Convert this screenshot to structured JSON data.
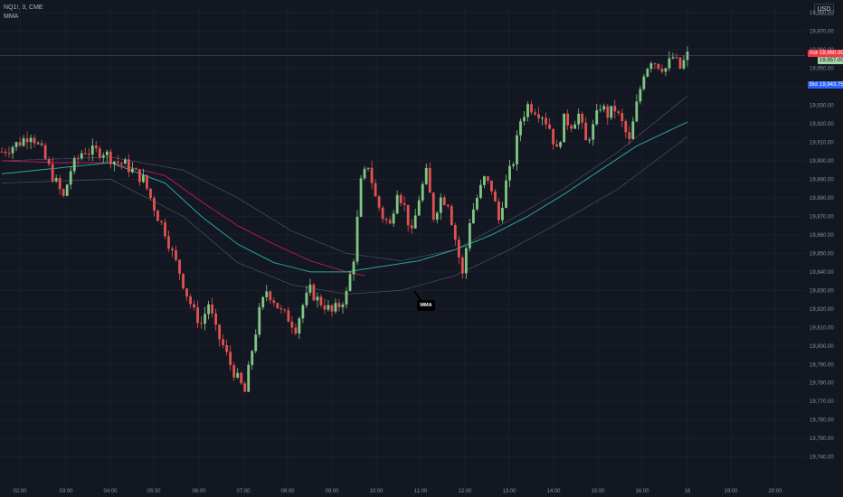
{
  "header": {
    "symbol_line": "NQ1!, 3, CME",
    "indicator_name": "MMA"
  },
  "currency_button": "USD",
  "price_tags": {
    "ask_label": "Ask",
    "ask_value": "19,960.00",
    "last_value": "19,957.00",
    "bid_label": "Bid",
    "bid_value": "19,943.75"
  },
  "callout_label": "MMA",
  "colors": {
    "background": "#131722",
    "up": "#81c784",
    "down": "#e05252",
    "ma_green": "#26a69a",
    "ma_red": "#c2185b",
    "band": "#5d606b",
    "ask": "#f23645",
    "bid": "#2962ff"
  },
  "chart_data": {
    "type": "candlestick",
    "y_ticks": [
      "19,980.00",
      "19,970.00",
      "19,960.00",
      "19,950.00",
      "19,940.00",
      "19,930.00",
      "19,920.00",
      "19,910.00",
      "19,900.00",
      "19,890.00",
      "19,880.00",
      "19,870.00",
      "19,860.00",
      "19,850.00",
      "19,840.00",
      "19,830.00",
      "19,820.00",
      "19,810.00",
      "19,800.00",
      "19,790.00",
      "19,780.00",
      "19,770.00",
      "19,760.00",
      "19,750.00",
      "19,740.00"
    ],
    "x_ticks": [
      "02:00",
      "03:00",
      "04:00",
      "05:00",
      "06:00",
      "07:00",
      "08:00",
      "09:00",
      "10:00",
      "11:00",
      "12:00",
      "13:00",
      "14:00",
      "15:00",
      "16:00",
      "16",
      "19:00",
      "20:00"
    ],
    "ylim": [
      19733,
      19983
    ],
    "close_path": [
      [
        0,
        19905
      ],
      [
        10,
        19910
      ],
      [
        16,
        19915
      ],
      [
        22,
        19905
      ],
      [
        28,
        19892
      ],
      [
        34,
        19880
      ],
      [
        38,
        19895
      ],
      [
        45,
        19906
      ],
      [
        48,
        19905
      ],
      [
        56,
        19905
      ],
      [
        62,
        19900
      ],
      [
        68,
        19898
      ],
      [
        74,
        19893
      ],
      [
        78,
        19890
      ],
      [
        82,
        19880
      ],
      [
        86,
        19870
      ],
      [
        90,
        19862
      ],
      [
        94,
        19850
      ],
      [
        98,
        19840
      ],
      [
        102,
        19828
      ],
      [
        106,
        19818
      ],
      [
        110,
        19812
      ],
      [
        114,
        19823
      ],
      [
        118,
        19808
      ],
      [
        122,
        19800
      ],
      [
        126,
        19790
      ],
      [
        130,
        19782
      ],
      [
        134,
        19775
      ],
      [
        138,
        19798
      ],
      [
        142,
        19818
      ],
      [
        146,
        19830
      ],
      [
        150,
        19825
      ],
      [
        154,
        19818
      ],
      [
        158,
        19815
      ],
      [
        162,
        19810
      ],
      [
        166,
        19822
      ],
      [
        170,
        19830
      ],
      [
        174,
        19825
      ],
      [
        178,
        19822
      ],
      [
        182,
        19818
      ],
      [
        186,
        19822
      ],
      [
        190,
        19828
      ],
      [
        194,
        19848
      ],
      [
        198,
        19888
      ],
      [
        202,
        19898
      ],
      [
        206,
        19880
      ],
      [
        210,
        19870
      ],
      [
        214,
        19865
      ],
      [
        218,
        19885
      ],
      [
        222,
        19875
      ],
      [
        226,
        19860
      ],
      [
        230,
        19880
      ],
      [
        234,
        19893
      ],
      [
        238,
        19870
      ],
      [
        242,
        19880
      ],
      [
        246,
        19878
      ],
      [
        250,
        19858
      ],
      [
        254,
        19838
      ],
      [
        258,
        19868
      ],
      [
        262,
        19880
      ],
      [
        266,
        19890
      ],
      [
        270,
        19885
      ],
      [
        274,
        19868
      ],
      [
        278,
        19888
      ],
      [
        282,
        19900
      ],
      [
        286,
        19922
      ],
      [
        290,
        19930
      ],
      [
        294,
        19928
      ],
      [
        298,
        19925
      ],
      [
        302,
        19918
      ],
      [
        306,
        19905
      ],
      [
        310,
        19922
      ],
      [
        314,
        19920
      ],
      [
        318,
        19925
      ],
      [
        322,
        19910
      ],
      [
        326,
        19918
      ],
      [
        330,
        19930
      ],
      [
        334,
        19925
      ],
      [
        338,
        19928
      ],
      [
        342,
        19920
      ],
      [
        346,
        19910
      ],
      [
        350,
        19930
      ],
      [
        354,
        19948
      ],
      [
        358,
        19955
      ],
      [
        362,
        19952
      ],
      [
        366,
        19950
      ],
      [
        370,
        19956
      ],
      [
        374,
        19950
      ],
      [
        378,
        19957
      ]
    ],
    "ma_green": [
      [
        0,
        19893
      ],
      [
        30,
        19896
      ],
      [
        60,
        19899
      ],
      [
        90,
        19888
      ],
      [
        110,
        19870
      ],
      [
        130,
        19855
      ],
      [
        150,
        19845
      ],
      [
        170,
        19840
      ],
      [
        190,
        19840
      ],
      [
        210,
        19843
      ],
      [
        230,
        19846
      ],
      [
        250,
        19852
      ],
      [
        270,
        19860
      ],
      [
        290,
        19870
      ],
      [
        310,
        19882
      ],
      [
        330,
        19895
      ],
      [
        350,
        19908
      ],
      [
        378,
        19921
      ]
    ],
    "ma_red": [
      [
        0,
        19900
      ],
      [
        30,
        19899
      ],
      [
        60,
        19899
      ],
      [
        90,
        19892
      ],
      [
        110,
        19878
      ],
      [
        130,
        19865
      ],
      [
        150,
        19855
      ],
      [
        170,
        19846
      ],
      [
        190,
        19840
      ],
      [
        200,
        19838
      ]
    ],
    "band_upper": [
      [
        0,
        19900
      ],
      [
        60,
        19902
      ],
      [
        100,
        19895
      ],
      [
        130,
        19880
      ],
      [
        160,
        19862
      ],
      [
        190,
        19850
      ],
      [
        220,
        19846
      ],
      [
        250,
        19852
      ],
      [
        280,
        19868
      ],
      [
        310,
        19885
      ],
      [
        340,
        19905
      ],
      [
        378,
        19935
      ]
    ],
    "band_lower": [
      [
        0,
        19888
      ],
      [
        60,
        19890
      ],
      [
        100,
        19870
      ],
      [
        130,
        19845
      ],
      [
        160,
        19833
      ],
      [
        190,
        19828
      ],
      [
        220,
        19830
      ],
      [
        250,
        19838
      ],
      [
        280,
        19852
      ],
      [
        310,
        19868
      ],
      [
        340,
        19885
      ],
      [
        378,
        19913
      ]
    ],
    "last_price": 19957
  }
}
